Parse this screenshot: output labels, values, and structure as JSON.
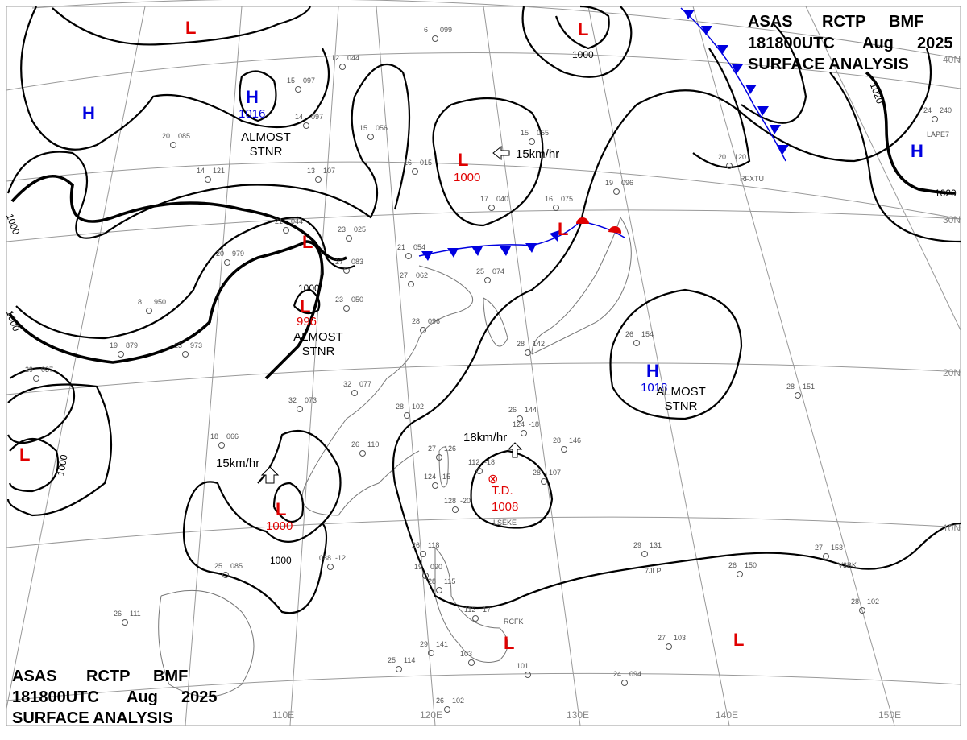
{
  "header": {
    "line1": [
      "ASAS",
      "RCTP",
      "BMF"
    ],
    "line2": [
      "181800UTC",
      "Aug",
      "2025"
    ],
    "line3": "SURFACE ANALYSIS"
  },
  "footer": {
    "line1": [
      "ASAS",
      "RCTP",
      "BMF"
    ],
    "line2": [
      "181800UTC",
      "Aug",
      "2025"
    ],
    "line3": "SURFACE ANALYSIS"
  },
  "grid": {
    "latitudes": [
      "40N",
      "30N",
      "20N",
      "10N"
    ],
    "longitudes": [
      "110E",
      "120E",
      "130E",
      "140E",
      "150E"
    ]
  },
  "colors": {
    "low": "#e00000",
    "high": "#0000e0",
    "cold_front": "#0000e0",
    "warm_front": "#e00000",
    "isobar": "#000000"
  },
  "systems": [
    {
      "type": "H",
      "pressure": "1016",
      "note": "ALMOST STNR"
    },
    {
      "type": "L",
      "pressure": ""
    },
    {
      "type": "L",
      "pressure": "1000"
    },
    {
      "type": "L",
      "pressure": "996",
      "note": "ALMOST STNR"
    },
    {
      "type": "L",
      "pressure": ""
    },
    {
      "type": "L",
      "pressure": "1000",
      "motion": "15km/hr"
    },
    {
      "type": "L",
      "pressure": "1000",
      "motion": "15km/hr"
    },
    {
      "type": "L",
      "pressure": ""
    },
    {
      "type": "L",
      "pressure": ""
    },
    {
      "type": "H",
      "pressure": "1018",
      "note": "ALMOST STNR"
    },
    {
      "type": "H",
      "pressure": ""
    },
    {
      "type": "H",
      "pressure": ""
    },
    {
      "type": "T.D.",
      "pressure": "1008",
      "motion": "18km/hr"
    },
    {
      "type": "L",
      "pressure": ""
    },
    {
      "type": "L",
      "pressure": ""
    }
  ],
  "isobar_labels": [
    "1000",
    "1000",
    "1000",
    "1000",
    "1000",
    "1020",
    "1020"
  ],
  "stations": [
    {
      "t": "6",
      "p": "099"
    },
    {
      "t": "12",
      "p": "044"
    },
    {
      "t": "15",
      "p": "097"
    },
    {
      "t": "14",
      "p": "097"
    },
    {
      "t": "20",
      "p": "085"
    },
    {
      "t": "15",
      "p": "056"
    },
    {
      "t": "14",
      "p": "121"
    },
    {
      "t": "13",
      "p": "107"
    },
    {
      "t": "16",
      "p": "015"
    },
    {
      "t": "15",
      "p": "055"
    },
    {
      "t": "17",
      "p": "040"
    },
    {
      "t": "16",
      "p": "075"
    },
    {
      "t": "19",
      "p": "096"
    },
    {
      "t": "21",
      "p": "044"
    },
    {
      "t": "23",
      "p": "025"
    },
    {
      "t": "20",
      "p": "979"
    },
    {
      "t": "27",
      "p": "083"
    },
    {
      "t": "27",
      "p": "062"
    },
    {
      "t": "21",
      "p": "054"
    },
    {
      "t": "8",
      "p": "950"
    },
    {
      "t": "23",
      "p": "050"
    },
    {
      "t": "25",
      "p": "074"
    },
    {
      "t": "28",
      "p": "096"
    },
    {
      "t": "19",
      "p": "879"
    },
    {
      "t": "13",
      "p": "973"
    },
    {
      "t": "29",
      "p": "037"
    },
    {
      "t": "32",
      "p": "077"
    },
    {
      "t": "32",
      "p": "073"
    },
    {
      "t": "28",
      "p": "102"
    },
    {
      "t": "26",
      "p": "144"
    },
    {
      "t": "18",
      "p": "066"
    },
    {
      "t": "26",
      "p": "110"
    },
    {
      "t": "27",
      "p": "126"
    },
    {
      "t": "124",
      "p": "-18"
    },
    {
      "t": "28",
      "p": "146"
    },
    {
      "t": "112",
      "p": "-18"
    },
    {
      "t": "124",
      "p": "-15"
    },
    {
      "t": "128",
      "p": "-20"
    },
    {
      "t": "28",
      "p": "107"
    },
    {
      "t": "25",
      "p": "085"
    },
    {
      "t": "088",
      "p": "-12"
    },
    {
      "t": "26",
      "p": "118"
    },
    {
      "t": "19",
      "p": "090"
    },
    {
      "t": "28",
      "p": "115"
    },
    {
      "t": "112",
      "p": "-17"
    },
    {
      "t": "29",
      "p": "141"
    },
    {
      "t": "103",
      "p": ""
    },
    {
      "t": "101",
      "p": ""
    },
    {
      "t": "25",
      "p": "114"
    },
    {
      "t": "26",
      "p": "102"
    },
    {
      "t": "26",
      "p": "111"
    },
    {
      "t": "29",
      "p": "131"
    },
    {
      "t": "26",
      "p": "150"
    },
    {
      "t": "27",
      "p": "153"
    },
    {
      "t": "28",
      "p": "102"
    },
    {
      "t": "27",
      "p": "103"
    },
    {
      "t": "24",
      "p": "094"
    },
    {
      "t": "28",
      "p": "151"
    },
    {
      "t": "20",
      "p": "120"
    },
    {
      "t": "24",
      "p": "240"
    },
    {
      "t": "26",
      "p": "154"
    },
    {
      "t": "28",
      "p": "142"
    }
  ],
  "station_ids": [
    "RFXTU",
    "LAPE7",
    "LSEKE",
    "RCFK",
    "7JLP",
    "V3BK"
  ]
}
